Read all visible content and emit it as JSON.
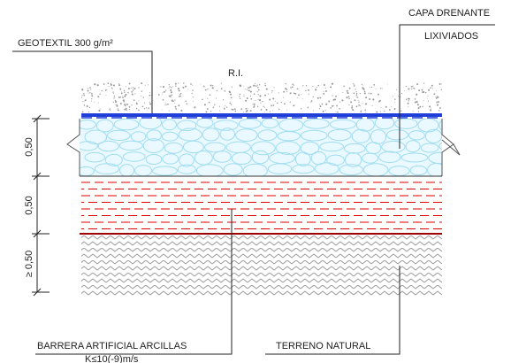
{
  "labels": {
    "geotextil": "GEOTEXTIL 300 g/m²",
    "ri": "R.I.",
    "capa_drenante_line1": "CAPA DRENANTE",
    "capa_drenante_line2": "LIXIVIADOS",
    "barrera_line1": "BARRERA ARTIFICIAL ARCILLAS",
    "barrera_line2": "K≤10(-9)m/s",
    "terreno": "TERRENO NATURAL"
  },
  "dimensions": {
    "drainage": "0,50",
    "clay": "0,50",
    "natural": "≥ 0,50"
  },
  "colors": {
    "geotextile": "#1f3fd8",
    "drainage_fill": "#eaf9ff",
    "drainage_stone": "#9fdcf0",
    "clay_dash": "#e00000",
    "clay_boundary": "#a00000",
    "natural_pattern": "#9a9a9a",
    "ri_dots": "#9a9a9a"
  }
}
